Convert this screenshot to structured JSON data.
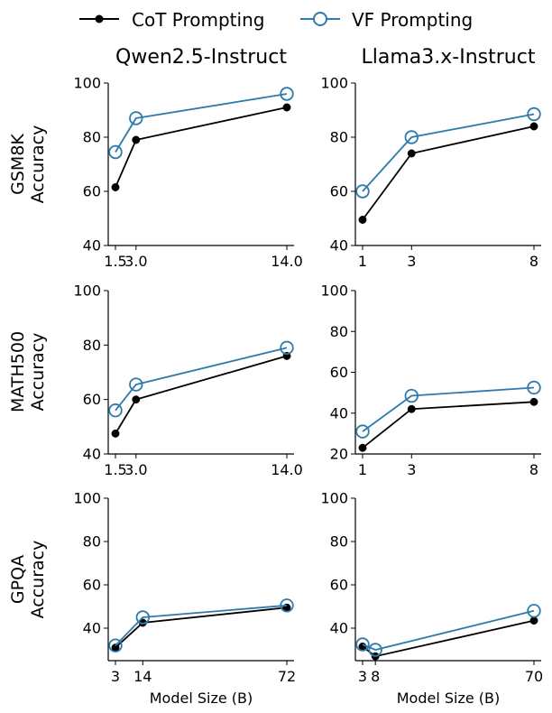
{
  "legend": {
    "series": [
      {
        "name": "CoT Prompting",
        "color": "#000000",
        "marker": "filled-dot"
      },
      {
        "name": "VF Prompting",
        "color": "#2e7bab",
        "marker": "hollow-circle"
      }
    ]
  },
  "column_titles": [
    "Qwen2.5-Instruct",
    "Llama3.x-Instruct"
  ],
  "row_labels": [
    [
      "GSM8K",
      "Accuracy"
    ],
    [
      "MATH500",
      "Accuracy"
    ],
    [
      "GPQA",
      "Accuracy"
    ]
  ],
  "xlabel": "Model Size (B)",
  "chart_data": [
    {
      "type": "line",
      "row": 0,
      "col": 0,
      "dataset": "GSM8K",
      "model": "Qwen2.5-Instruct",
      "x": [
        1.5,
        3.0,
        14.0
      ],
      "xticks": [
        "1.5",
        "3.0",
        "14.0"
      ],
      "xlim": [
        1.5,
        14.0
      ],
      "ylim": [
        40,
        100
      ],
      "yticks": [
        40,
        60,
        80,
        100
      ],
      "series": [
        {
          "name": "CoT Prompting",
          "values": [
            61.5,
            79,
            91
          ]
        },
        {
          "name": "VF Prompting",
          "values": [
            74.5,
            87,
            96
          ]
        }
      ]
    },
    {
      "type": "line",
      "row": 0,
      "col": 1,
      "dataset": "GSM8K",
      "model": "Llama3.x-Instruct",
      "x": [
        1,
        3,
        8
      ],
      "xticks": [
        "1",
        "3",
        "8"
      ],
      "xlim": [
        1,
        8
      ],
      "ylim": [
        40,
        100
      ],
      "yticks": [
        40,
        60,
        80,
        100
      ],
      "series": [
        {
          "name": "CoT Prompting",
          "values": [
            49.5,
            74,
            84
          ]
        },
        {
          "name": "VF Prompting",
          "values": [
            60,
            80,
            88.5
          ]
        }
      ]
    },
    {
      "type": "line",
      "row": 1,
      "col": 0,
      "dataset": "MATH500",
      "model": "Qwen2.5-Instruct",
      "x": [
        1.5,
        3.0,
        14.0
      ],
      "xticks": [
        "1.5",
        "3.0",
        "14.0"
      ],
      "xlim": [
        1.5,
        14.0
      ],
      "ylim": [
        40,
        100
      ],
      "yticks": [
        40,
        60,
        80,
        100
      ],
      "series": [
        {
          "name": "CoT Prompting",
          "values": [
            47.5,
            60,
            76
          ]
        },
        {
          "name": "VF Prompting",
          "values": [
            56,
            65.5,
            79
          ]
        }
      ]
    },
    {
      "type": "line",
      "row": 1,
      "col": 1,
      "dataset": "MATH500",
      "model": "Llama3.x-Instruct",
      "x": [
        1,
        3,
        8
      ],
      "xticks": [
        "1",
        "3",
        "8"
      ],
      "xlim": [
        1,
        8
      ],
      "ylim": [
        20,
        100
      ],
      "yticks": [
        20,
        40,
        60,
        80,
        100
      ],
      "series": [
        {
          "name": "CoT Prompting",
          "values": [
            23,
            42,
            45.5
          ]
        },
        {
          "name": "VF Prompting",
          "values": [
            31,
            48.5,
            52.5
          ]
        }
      ]
    },
    {
      "type": "line",
      "row": 2,
      "col": 0,
      "dataset": "GPQA",
      "model": "Qwen2.5-Instruct",
      "x": [
        3,
        14,
        72
      ],
      "xticks": [
        "3",
        "14",
        "72"
      ],
      "xlim": [
        3,
        72
      ],
      "ylim": [
        25,
        100
      ],
      "yticks": [
        40,
        60,
        80,
        100
      ],
      "series": [
        {
          "name": "CoT Prompting",
          "values": [
            31,
            42.5,
            49.5
          ]
        },
        {
          "name": "VF Prompting",
          "values": [
            32,
            45,
            50.5
          ]
        }
      ]
    },
    {
      "type": "line",
      "row": 2,
      "col": 1,
      "dataset": "GPQA",
      "model": "Llama3.x-Instruct",
      "x": [
        3,
        8,
        70
      ],
      "xticks": [
        "3",
        "8",
        "70"
      ],
      "xlim": [
        3,
        70
      ],
      "ylim": [
        25,
        100
      ],
      "yticks": [
        40,
        60,
        80,
        100
      ],
      "series": [
        {
          "name": "CoT Prompting",
          "values": [
            31.5,
            27,
            43.5
          ]
        },
        {
          "name": "VF Prompting",
          "values": [
            32.5,
            30,
            48
          ]
        }
      ]
    }
  ]
}
